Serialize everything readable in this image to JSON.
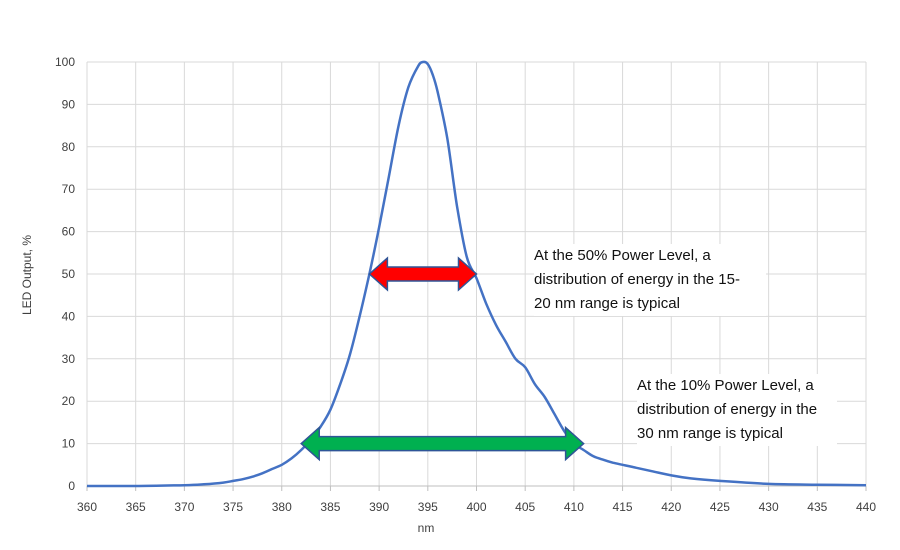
{
  "chart_data": {
    "type": "line",
    "title": "",
    "xlabel": "nm",
    "ylabel": "LED Output, %",
    "xlim": [
      360,
      440
    ],
    "ylim": [
      0,
      100
    ],
    "x_ticks": [
      "360",
      "365",
      "370",
      "375",
      "380",
      "385",
      "390",
      "395",
      "400",
      "405",
      "410",
      "415",
      "420",
      "425",
      "430",
      "435",
      "440"
    ],
    "y_ticks": [
      "0",
      "10",
      "20",
      "30",
      "40",
      "50",
      "60",
      "70",
      "80",
      "90",
      "100"
    ],
    "grid": true,
    "legend": "none",
    "series": [
      {
        "color": "#4472c4",
        "x": [
          360,
          365,
          370,
          372,
          374,
          375,
          376,
          377,
          378,
          379,
          380,
          381,
          382,
          383,
          384,
          385,
          386,
          387,
          388,
          389,
          390,
          391,
          392,
          393,
          394,
          394.5,
          395,
          395.5,
          396,
          397,
          398,
          399,
          400,
          401,
          402,
          403,
          404,
          405,
          406,
          407,
          408,
          409,
          410,
          411,
          412,
          413,
          414,
          415,
          416,
          418,
          420,
          422,
          425,
          430,
          435,
          440
        ],
        "y": [
          0,
          0,
          0.2,
          0.4,
          0.8,
          1.2,
          1.6,
          2.2,
          3,
          4,
          5,
          6.5,
          8.5,
          11,
          14,
          18,
          24,
          31,
          40,
          50,
          61,
          73,
          85,
          94,
          99,
          100,
          99.5,
          97,
          93,
          82,
          66,
          54,
          49,
          43,
          38,
          34,
          30,
          28,
          24,
          21,
          17,
          13,
          10,
          8.5,
          7,
          6.2,
          5.5,
          5,
          4.5,
          3.5,
          2.5,
          1.8,
          1.2,
          0.5,
          0.3,
          0.2
        ]
      }
    ],
    "annotations": [
      {
        "text": "At the 50% Power Level, a\ndistribution of energy in the 15-\n20 nm range is typical",
        "arrow_from": 389,
        "arrow_to": 400,
        "arrow_y": 50,
        "color": "#ff0000"
      },
      {
        "text": "At the 10% Power Level, a\ndistribution of energy in the\n30 nm range is typical",
        "arrow_from": 382,
        "arrow_to": 411,
        "arrow_y": 10,
        "color": "#00b050"
      }
    ]
  }
}
